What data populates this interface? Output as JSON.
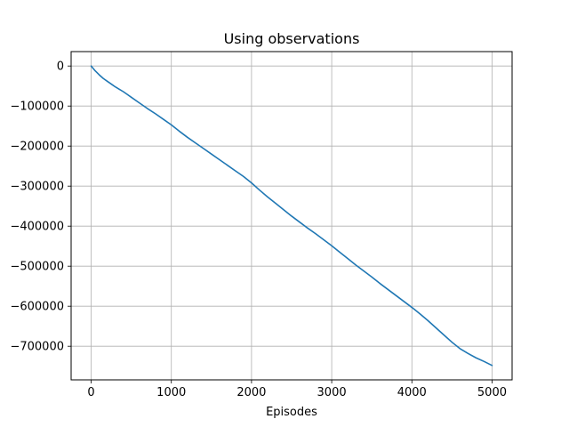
{
  "chart_data": {
    "type": "line",
    "title": "Using observations",
    "xlabel": "Episodes",
    "ylabel": "",
    "xlim": [
      -250,
      5250
    ],
    "ylim": [
      -784000,
      36000
    ],
    "grid": true,
    "legend": "none",
    "x_ticks": [
      0,
      1000,
      2000,
      3000,
      4000,
      5000
    ],
    "x_tick_labels": [
      "0",
      "1000",
      "2000",
      "3000",
      "4000",
      "5000"
    ],
    "y_ticks": [
      0,
      -100000,
      -200000,
      -300000,
      -400000,
      -500000,
      -600000,
      -700000
    ],
    "y_tick_labels": [
      "0",
      "−100000",
      "−200000",
      "−300000",
      "−400000",
      "−500000",
      "−600000",
      "−700000"
    ],
    "series": [
      {
        "name": "",
        "color": "#1f77b4",
        "x": [
          0,
          50,
          100,
          150,
          200,
          250,
          300,
          350,
          400,
          450,
          500,
          600,
          700,
          800,
          900,
          1000,
          1100,
          1200,
          1300,
          1400,
          1500,
          1600,
          1700,
          1800,
          1900,
          2000,
          2100,
          2200,
          2300,
          2400,
          2500,
          2600,
          2700,
          2800,
          2900,
          3000,
          3100,
          3200,
          3300,
          3400,
          3500,
          3600,
          3700,
          3800,
          3900,
          4000,
          4100,
          4200,
          4300,
          4400,
          4500,
          4600,
          4700,
          4800,
          4900,
          5000
        ],
        "y": [
          0,
          -12000,
          -22000,
          -31000,
          -38000,
          -45000,
          -52000,
          -58000,
          -64000,
          -71000,
          -78000,
          -92000,
          -106000,
          -119000,
          -133000,
          -147000,
          -163000,
          -178000,
          -192000,
          -206000,
          -220000,
          -234000,
          -248000,
          -262000,
          -276000,
          -292000,
          -310000,
          -327000,
          -343000,
          -359000,
          -375000,
          -390000,
          -405000,
          -419000,
          -434000,
          -449000,
          -465000,
          -481000,
          -497000,
          -512000,
          -527000,
          -543000,
          -558000,
          -573000,
          -588000,
          -603000,
          -619000,
          -636000,
          -654000,
          -672000,
          -690000,
          -706000,
          -718000,
          -729000,
          -738000,
          -748000
        ]
      }
    ]
  }
}
